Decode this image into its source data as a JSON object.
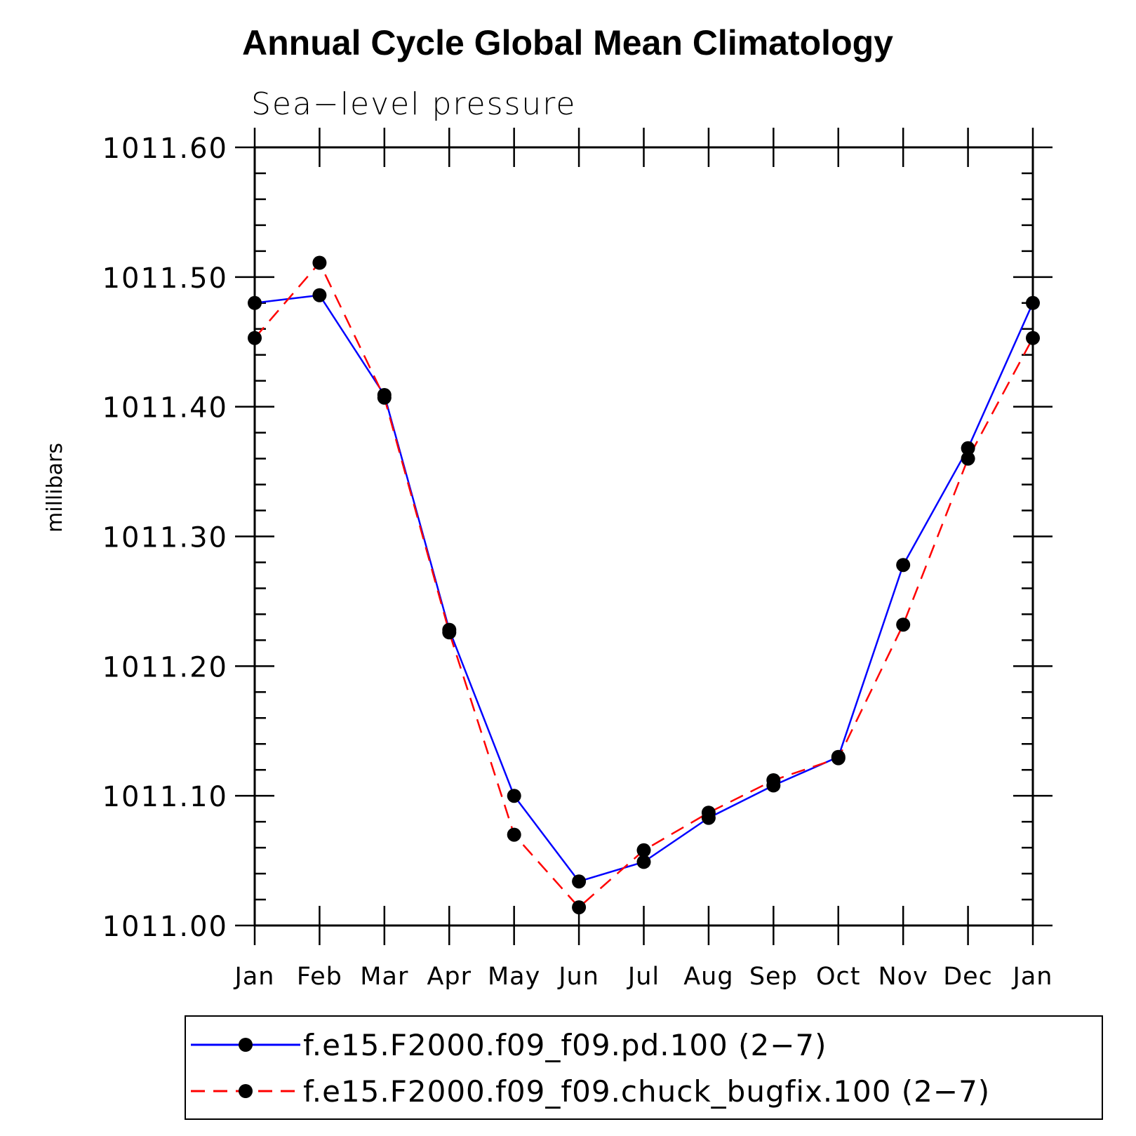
{
  "chart_data": {
    "type": "line",
    "title": "Annual Cycle Global Mean Climatology",
    "subtitle": "Sea−level pressure",
    "ylabel": "millibars",
    "xlabel": "",
    "categories": [
      "Jan",
      "Feb",
      "Mar",
      "Apr",
      "May",
      "Jun",
      "Jul",
      "Aug",
      "Sep",
      "Oct",
      "Nov",
      "Dec",
      "Jan"
    ],
    "ylim": [
      1011.0,
      1011.6
    ],
    "yticks": [
      "1011.00",
      "1011.10",
      "1011.20",
      "1011.30",
      "1011.40",
      "1011.50",
      "1011.60"
    ],
    "grid": false,
    "legend_position": "bottom",
    "series": [
      {
        "name": "f.e15.F2000.f09_f09.pd.100 (2−7)",
        "color": "#0000ff",
        "dash": "solid",
        "marker": "filled-circle",
        "values": [
          1011.48,
          1011.486,
          1011.409,
          1011.228,
          1011.1,
          1011.034,
          1011.049,
          1011.083,
          1011.108,
          1011.13,
          1011.278,
          1011.368,
          1011.48
        ]
      },
      {
        "name": "f.e15.F2000.f09_f09.chuck_bugfix.100 (2−7)",
        "color": "#ff0000",
        "dash": "dashed",
        "marker": "filled-circle",
        "values": [
          1011.453,
          1011.511,
          1011.407,
          1011.226,
          1011.07,
          1011.014,
          1011.058,
          1011.087,
          1011.112,
          1011.129,
          1011.232,
          1011.36,
          1011.453
        ]
      }
    ]
  }
}
